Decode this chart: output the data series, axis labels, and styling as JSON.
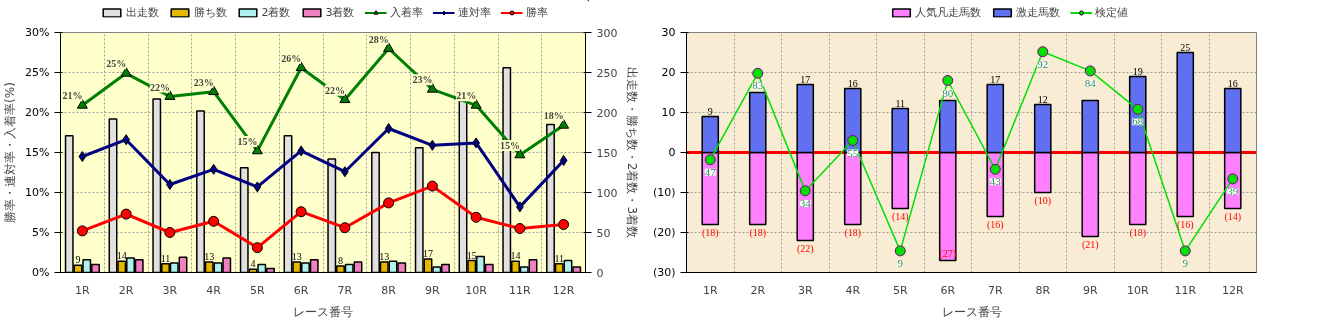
{
  "chart_data": [
    {
      "type": "bar",
      "categories": [
        "1R",
        "2R",
        "3R",
        "4R",
        "5R",
        "6R",
        "7R",
        "8R",
        "9R",
        "10R",
        "11R",
        "12R"
      ],
      "xlabel": "レース番号",
      "ylabel": "勝率・連対率・入着率(%)",
      "y2label": "出走数・勝ち数・2着数・3着数",
      "ylim": [
        0,
        30
      ],
      "yticks": [
        {
          "value": 0,
          "label": "0%"
        },
        {
          "value": 5,
          "label": "5%"
        },
        {
          "value": 10,
          "label": "10%"
        },
        {
          "value": 15,
          "label": "15%"
        },
        {
          "value": 20,
          "label": "20%"
        },
        {
          "value": 25,
          "label": "25%"
        },
        {
          "value": 30,
          "label": "30%"
        }
      ],
      "y2lim": [
        0,
        300
      ],
      "y2ticks": [
        0,
        50,
        100,
        150,
        200,
        250,
        300
      ],
      "grid": true,
      "legend": "top",
      "series": [
        {
          "name": "出走数",
          "axis": "y2",
          "color": "#e0e0e0",
          "values": [
            171,
            192,
            217,
            202,
            131,
            171,
            142,
            150,
            156,
            215,
            256,
            185
          ]
        },
        {
          "name": "勝ち数",
          "axis": "y2",
          "color": "#e6b800",
          "values": [
            9,
            14,
            11,
            13,
            4,
            13,
            8,
            13,
            17,
            15,
            14,
            11
          ],
          "value_labels": [
            "9",
            "14",
            "11",
            "13",
            "4",
            "13",
            "8",
            "13",
            "17",
            "15",
            "14",
            "11"
          ]
        },
        {
          "name": "2着数",
          "axis": "y2",
          "color": "#b0f0f0",
          "values": [
            16,
            18,
            12,
            12,
            10,
            12,
            10,
            14,
            7,
            20,
            7,
            15
          ]
        },
        {
          "name": "3着数",
          "axis": "y2",
          "color": "#f080c0",
          "values": [
            10,
            16,
            19,
            18,
            5,
            16,
            13,
            12,
            10,
            10,
            16,
            7
          ]
        },
        {
          "name": "入着率",
          "type": "line",
          "color": "#008000",
          "marker": "triangle",
          "values": [
            20.9,
            24.9,
            22.0,
            22.6,
            15.2,
            25.6,
            21.6,
            28.0,
            22.9,
            20.9,
            14.7,
            18.4
          ],
          "value_labels": [
            "21%",
            "25%",
            "22%",
            "23%",
            "15%",
            "26%",
            "22%",
            "28%",
            "23%",
            "21%",
            "15%",
            "18%"
          ]
        },
        {
          "name": "連対率",
          "type": "line",
          "color": "#000080",
          "marker": "diamond",
          "values": [
            14.5,
            16.6,
            11.0,
            12.9,
            10.7,
            15.2,
            12.6,
            18.0,
            15.9,
            16.2,
            8.2,
            14.0
          ]
        },
        {
          "name": "勝率",
          "type": "line",
          "color": "#ff0000",
          "marker": "circle",
          "values": [
            5.2,
            7.3,
            5.0,
            6.4,
            3.1,
            7.6,
            5.6,
            8.7,
            10.8,
            6.9,
            5.5,
            6.0
          ]
        }
      ]
    },
    {
      "type": "bar",
      "stacked": true,
      "categories": [
        "1R",
        "2R",
        "3R",
        "4R",
        "5R",
        "6R",
        "7R",
        "8R",
        "9R",
        "10R",
        "11R",
        "12R"
      ],
      "xlabel": "レース番号",
      "ylim": [
        -30,
        30
      ],
      "yticks": [
        {
          "value": -30,
          "label": "(30)"
        },
        {
          "value": -20,
          "label": "(20)"
        },
        {
          "value": -10,
          "label": "(10)"
        },
        0,
        10,
        20,
        30
      ],
      "y2lim": [
        0,
        100
      ],
      "grid": true,
      "legend": "top",
      "ref_lines": [
        {
          "axis": "y",
          "value": 0,
          "color": "#ff0000"
        }
      ],
      "series": [
        {
          "name": "人気凡走馬数",
          "color": "#ff80ff",
          "values": [
            -18,
            -18,
            -22,
            -18,
            -14,
            -27,
            -16,
            -10,
            -21,
            -18,
            -16,
            -14
          ],
          "value_labels": [
            "(18)",
            "(18)",
            "(22)",
            "(18)",
            "(14)",
            "(27)",
            "(16)",
            "(10)",
            "(21)",
            "(18)",
            "(16)",
            "(14)"
          ]
        },
        {
          "name": "激走馬数",
          "color": "#6070f0",
          "values": [
            9,
            15,
            17,
            16,
            11,
            13,
            17,
            12,
            13,
            19,
            25,
            16
          ],
          "value_labels": [
            "9",
            null,
            "17",
            "16",
            "11",
            null,
            "17",
            "12",
            null,
            "19",
            "25",
            "16"
          ]
        },
        {
          "name": "検定値",
          "type": "line",
          "axis": "y2",
          "color": "#00e000",
          "marker": "circle",
          "values": [
            47,
            83,
            34,
            55,
            9,
            80,
            43,
            92,
            84,
            68,
            9,
            39
          ],
          "value_labels": [
            "47",
            "83",
            "34",
            "55",
            "9",
            "80",
            "43",
            "92",
            "84",
            "68",
            "9",
            "39"
          ]
        }
      ]
    }
  ]
}
